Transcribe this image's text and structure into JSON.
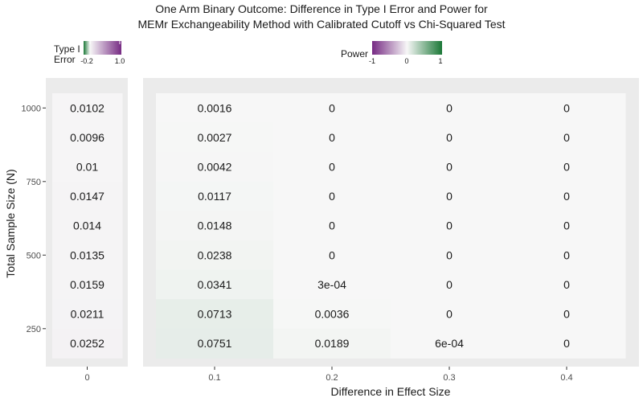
{
  "chart_data": {
    "type": "heatmap",
    "title": "One Arm Binary Outcome: Difference in Type I Error and Power for",
    "subtitle": "MEMr Exchangeability Method with Calibrated Cutoff vs Chi-Squared Test",
    "xlabel": "Difference in Effect Size",
    "ylabel": "Total Sample Size (N)",
    "y_ticks": [
      "250",
      "500",
      "750",
      "1000"
    ],
    "y_range": [
      200,
      1050
    ],
    "rows": [
      1000,
      900,
      800,
      700,
      600,
      500,
      400,
      300,
      200
    ],
    "panels": [
      {
        "name": "Type I Error",
        "x_ticks": [
          "0"
        ],
        "columns": [
          "0"
        ],
        "cells": [
          [
            "0.0102"
          ],
          [
            "0.0096"
          ],
          [
            "0.01"
          ],
          [
            "0.0147"
          ],
          [
            "0.014"
          ],
          [
            "0.0135"
          ],
          [
            "0.0159"
          ],
          [
            "0.0211"
          ],
          [
            "0.0252"
          ]
        ],
        "values": [
          [
            0.0102
          ],
          [
            0.0096
          ],
          [
            0.01
          ],
          [
            0.0147
          ],
          [
            0.014
          ],
          [
            0.0135
          ],
          [
            0.0159
          ],
          [
            0.0211
          ],
          [
            0.0252
          ]
        ]
      },
      {
        "name": "Power",
        "x_ticks": [
          "0.1",
          "0.2",
          "0.3",
          "0.4"
        ],
        "columns": [
          "0.1",
          "0.2",
          "0.3",
          "0.4"
        ],
        "cells": [
          [
            "0.0016",
            "0",
            "0",
            "0"
          ],
          [
            "0.0027",
            "0",
            "0",
            "0"
          ],
          [
            "0.0042",
            "0",
            "0",
            "0"
          ],
          [
            "0.0117",
            "0",
            "0",
            "0"
          ],
          [
            "0.0148",
            "0",
            "0",
            "0"
          ],
          [
            "0.0238",
            "0",
            "0",
            "0"
          ],
          [
            "0.0341",
            "3e-04",
            "0",
            "0"
          ],
          [
            "0.0713",
            "0.0036",
            "0",
            "0"
          ],
          [
            "0.0751",
            "0.0189",
            "6e-04",
            "0"
          ]
        ],
        "values": [
          [
            0.0016,
            0,
            0,
            0
          ],
          [
            0.0027,
            0,
            0,
            0
          ],
          [
            0.0042,
            0,
            0,
            0
          ],
          [
            0.0117,
            0,
            0,
            0
          ],
          [
            0.0148,
            0,
            0,
            0
          ],
          [
            0.0238,
            0,
            0,
            0
          ],
          [
            0.0341,
            0.0003,
            0,
            0
          ],
          [
            0.0713,
            0.0036,
            0,
            0
          ],
          [
            0.0751,
            0.0189,
            0.0006,
            0
          ]
        ]
      }
    ],
    "legends": {
      "type1": {
        "title_line1": "Type I",
        "title_line2": "Error",
        "low_label": "-0.2",
        "high_label": "1.0",
        "range": [
          -0.2,
          1.0
        ],
        "low_color": "#1b7837",
        "mid_color": "#f7f7f7",
        "high_color": "#762a83"
      },
      "power": {
        "title": "Power",
        "min_label": "-1",
        "mid_label": "0",
        "max_label": "1",
        "range": [
          -1,
          1
        ],
        "low_color": "#762a83",
        "mid_color": "#f7f7f7",
        "high_color": "#1b7837"
      }
    },
    "legend_placement": "top",
    "panel_background": "#ebebeb",
    "grid": false
  }
}
